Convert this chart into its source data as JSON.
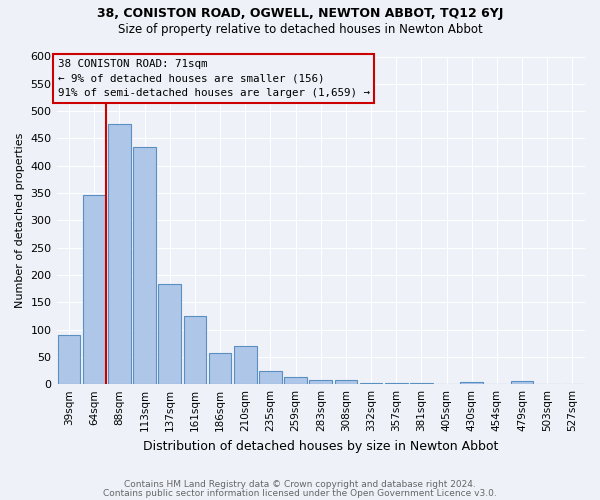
{
  "title1": "38, CONISTON ROAD, OGWELL, NEWTON ABBOT, TQ12 6YJ",
  "title2": "Size of property relative to detached houses in Newton Abbot",
  "xlabel": "Distribution of detached houses by size in Newton Abbot",
  "ylabel": "Number of detached properties",
  "categories": [
    "39sqm",
    "64sqm",
    "88sqm",
    "113sqm",
    "137sqm",
    "161sqm",
    "186sqm",
    "210sqm",
    "235sqm",
    "259sqm",
    "283sqm",
    "308sqm",
    "332sqm",
    "357sqm",
    "381sqm",
    "405sqm",
    "430sqm",
    "454sqm",
    "479sqm",
    "503sqm",
    "527sqm"
  ],
  "values": [
    90,
    347,
    476,
    435,
    183,
    125,
    58,
    70,
    25,
    13,
    8,
    7,
    2,
    2,
    3,
    0,
    4,
    0,
    5,
    0,
    0
  ],
  "bar_color": "#aec6e8",
  "bar_edge_color": "#5a8fc2",
  "vline_color": "#cc0000",
  "vline_x_index": 1,
  "annotation_title": "38 CONISTON ROAD: 71sqm",
  "annotation_line1": "← 9% of detached houses are smaller (156)",
  "annotation_line2": "91% of semi-detached houses are larger (1,659) →",
  "annotation_box_color": "#cc0000",
  "ylim": [
    0,
    600
  ],
  "yticks": [
    0,
    50,
    100,
    150,
    200,
    250,
    300,
    350,
    400,
    450,
    500,
    550,
    600
  ],
  "footer1": "Contains HM Land Registry data © Crown copyright and database right 2024.",
  "footer2": "Contains public sector information licensed under the Open Government Licence v3.0.",
  "background_color": "#eef2f8"
}
